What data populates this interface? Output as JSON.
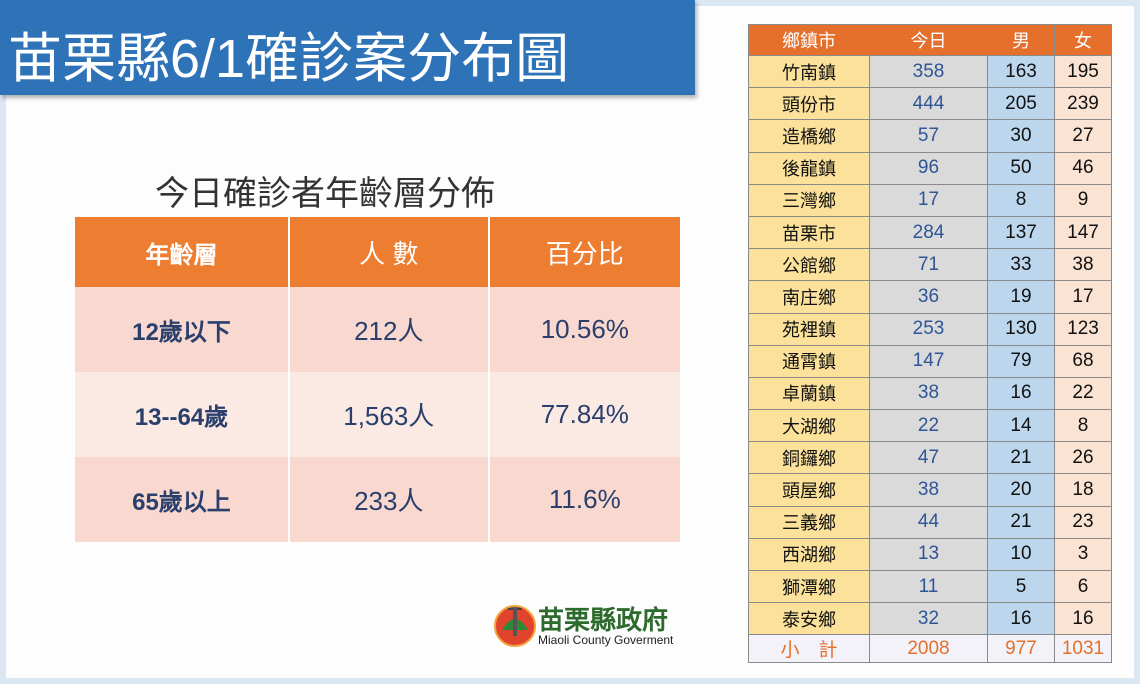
{
  "title": "苗栗縣6/1確診案分布圖",
  "age_table": {
    "title": "今日確診者年齡層分佈",
    "header": [
      "年齡層",
      "人 數",
      "百分比"
    ],
    "rows": [
      [
        "12歲以下",
        "212人",
        "10.56%"
      ],
      [
        "13--64歲",
        "1,563人",
        "77.84%"
      ],
      [
        "65歲以上",
        "233人",
        "11.6%"
      ]
    ]
  },
  "town_table": {
    "header": [
      "鄉鎮市",
      "今日",
      "男",
      "女"
    ],
    "rows": [
      [
        "竹南鎮",
        358,
        163,
        195
      ],
      [
        "頭份市",
        444,
        205,
        239
      ],
      [
        "造橋鄉",
        57,
        30,
        27
      ],
      [
        "後龍鎮",
        96,
        50,
        46
      ],
      [
        "三灣鄉",
        17,
        8,
        9
      ],
      [
        "苗栗市",
        284,
        137,
        147
      ],
      [
        "公館鄉",
        71,
        33,
        38
      ],
      [
        "南庄鄉",
        36,
        19,
        17
      ],
      [
        "苑裡鎮",
        253,
        130,
        123
      ],
      [
        "通霄鎮",
        147,
        79,
        68
      ],
      [
        "卓蘭鎮",
        38,
        16,
        22
      ],
      [
        "大湖鄉",
        22,
        14,
        8
      ],
      [
        "銅鑼鄉",
        47,
        21,
        26
      ],
      [
        "頭屋鄉",
        38,
        20,
        18
      ],
      [
        "三義鄉",
        44,
        21,
        23
      ],
      [
        "西湖鄉",
        13,
        10,
        3
      ],
      [
        "獅潭鄉",
        11,
        5,
        6
      ],
      [
        "泰安鄉",
        32,
        16,
        16
      ]
    ],
    "total": [
      "小　計",
      2008,
      977,
      1031
    ]
  },
  "logo": {
    "name": "苗栗縣政府",
    "english": "Miaoli County Goverment"
  }
}
